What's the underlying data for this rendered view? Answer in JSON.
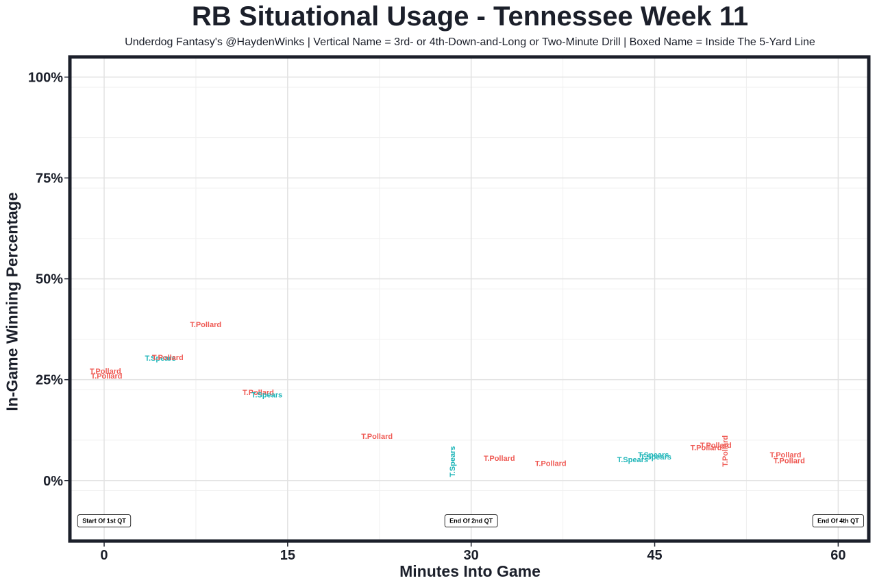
{
  "chart_data": {
    "type": "scatter",
    "title": "RB Situational Usage - Tennessee Week 11",
    "subtitle": "Underdog Fantasy's @HaydenWinks | Vertical Name = 3rd- or 4th-Down-and-Long or Two-Minute Drill | Boxed Name = Inside The 5-Yard Line",
    "xlabel": "Minutes Into Game",
    "ylabel": "In-Game Winning Percentage",
    "xlim": [
      -2.8,
      62.5
    ],
    "ylim": [
      -15,
      105
    ],
    "x_ticks": [
      0,
      15,
      30,
      45,
      60
    ],
    "x_tick_labels": [
      "0",
      "15",
      "30",
      "45",
      "60"
    ],
    "y_ticks": [
      0,
      25,
      50,
      75,
      100
    ],
    "y_tick_labels": [
      "0%",
      "25%",
      "50%",
      "75%",
      "100%"
    ],
    "grid": true,
    "colors": {
      "T.Pollard": "#ef5a54",
      "T.Spears": "#1db5b8"
    },
    "points": [
      {
        "player": "T.Pollard",
        "x": 0.1,
        "y": 27.0,
        "vertical": false
      },
      {
        "player": "T.Pollard",
        "x": 0.2,
        "y": 25.8,
        "vertical": false
      },
      {
        "player": "T.Spears",
        "x": 4.6,
        "y": 30.2,
        "vertical": false
      },
      {
        "player": "T.Pollard",
        "x": 5.2,
        "y": 30.4,
        "vertical": false
      },
      {
        "player": "T.Pollard",
        "x": 8.3,
        "y": 38.5,
        "vertical": false
      },
      {
        "player": "T.Pollard",
        "x": 12.6,
        "y": 21.7,
        "vertical": false
      },
      {
        "player": "T.Spears",
        "x": 13.3,
        "y": 21.1,
        "vertical": false
      },
      {
        "player": "T.Pollard",
        "x": 22.3,
        "y": 10.8,
        "vertical": false
      },
      {
        "player": "T.Spears",
        "x": 28.5,
        "y": 4.7,
        "vertical": true
      },
      {
        "player": "T.Pollard",
        "x": 32.3,
        "y": 5.4,
        "vertical": false
      },
      {
        "player": "T.Pollard",
        "x": 36.5,
        "y": 4.1,
        "vertical": false
      },
      {
        "player": "T.Spears",
        "x": 43.2,
        "y": 5.0,
        "vertical": false
      },
      {
        "player": "T.Spears",
        "x": 44.9,
        "y": 6.2,
        "vertical": false
      },
      {
        "player": "T.Spears",
        "x": 45.1,
        "y": 5.7,
        "vertical": false
      },
      {
        "player": "T.Pollard",
        "x": 49.2,
        "y": 8.0,
        "vertical": false
      },
      {
        "player": "T.Pollard",
        "x": 50.0,
        "y": 8.6,
        "vertical": false
      },
      {
        "player": "T.Pollard",
        "x": 50.8,
        "y": 7.3,
        "vertical": true
      },
      {
        "player": "T.Pollard",
        "x": 55.7,
        "y": 6.2,
        "vertical": false
      },
      {
        "player": "T.Pollard",
        "x": 56.0,
        "y": 4.8,
        "vertical": false
      }
    ],
    "annotations": [
      {
        "text": "Start Of 1st QT",
        "x": 0,
        "y": -10
      },
      {
        "text": "End Of 2nd QT",
        "x": 30,
        "y": -10
      },
      {
        "text": "End Of 4th QT",
        "x": 60,
        "y": -10
      }
    ]
  }
}
